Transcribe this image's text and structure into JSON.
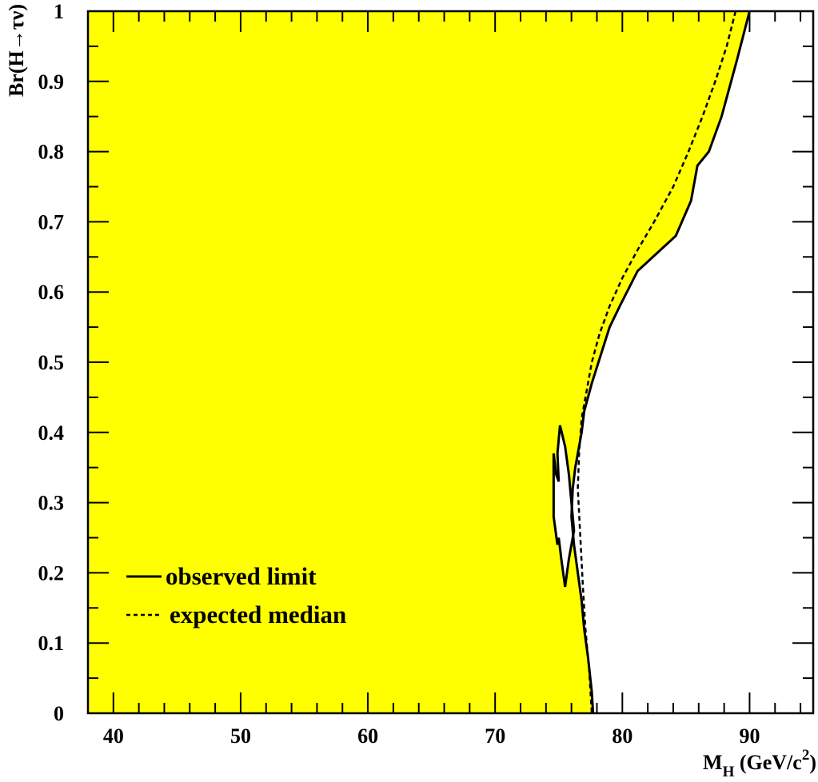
{
  "chart_data": {
    "type": "area",
    "title": "",
    "xlabel": {
      "base": "M",
      "sub": "H",
      "mid": " (GeV/c",
      "sup": "2",
      "end": ")"
    },
    "ylabel": {
      "prefix": "Br(H",
      "arrow": "→",
      "suffix": "τν)"
    },
    "xlim": [
      38,
      95
    ],
    "ylim": [
      0,
      1
    ],
    "x_ticks": [
      "40",
      "50",
      "60",
      "70",
      "80",
      "90"
    ],
    "x_tick_values": [
      40,
      50,
      60,
      70,
      80,
      90
    ],
    "y_ticks": [
      "0",
      "0.1",
      "0.2",
      "0.3",
      "0.4",
      "0.5",
      "0.6",
      "0.7",
      "0.8",
      "0.9",
      "1"
    ],
    "y_tick_values": [
      0,
      0.1,
      0.2,
      0.3,
      0.4,
      0.5,
      0.6,
      0.7,
      0.8,
      0.9,
      1.0
    ],
    "excluded_fill_color": "#ffff00",
    "series": [
      {
        "name": "observed limit",
        "style": "solid",
        "x": [
          90.0,
          89.0,
          87.8,
          86.8,
          85.9,
          85.4,
          84.2,
          81.2,
          79.8,
          79.0,
          78.3,
          77.6,
          77.0,
          76.8,
          76.5,
          76.3,
          76.1,
          76.0,
          76.2,
          76.5,
          76.8,
          77.0,
          77.3,
          77.6,
          77.7
        ],
        "y": [
          1.0,
          0.93,
          0.85,
          0.8,
          0.78,
          0.73,
          0.68,
          0.63,
          0.58,
          0.55,
          0.51,
          0.47,
          0.43,
          0.4,
          0.37,
          0.35,
          0.32,
          0.28,
          0.24,
          0.2,
          0.16,
          0.12,
          0.08,
          0.03,
          0.0
        ],
        "line_color": "#000000"
      },
      {
        "name": "observed limit (island)",
        "style": "solid",
        "x": [
          75.5,
          75.8,
          76.2,
          76.0,
          75.8,
          75.5,
          75.1,
          74.9,
          75.0,
          74.8,
          74.6,
          74.6,
          74.9,
          75.0,
          75.2
        ],
        "y": [
          0.18,
          0.22,
          0.26,
          0.3,
          0.34,
          0.38,
          0.41,
          0.37,
          0.33,
          0.34,
          0.37,
          0.28,
          0.24,
          0.25,
          0.22
        ],
        "line_color": "#000000"
      },
      {
        "name": "expected median",
        "style": "dashed",
        "x": [
          88.9,
          88.2,
          87.3,
          86.3,
          85.2,
          84.0,
          82.5,
          81.2,
          80.0,
          79.0,
          78.2,
          77.6,
          77.2,
          76.8,
          76.6,
          76.5,
          76.7,
          76.9,
          77.1,
          77.4,
          77.6
        ],
        "y": [
          1.0,
          0.95,
          0.9,
          0.85,
          0.8,
          0.75,
          0.7,
          0.66,
          0.62,
          0.58,
          0.54,
          0.5,
          0.46,
          0.42,
          0.37,
          0.32,
          0.25,
          0.18,
          0.12,
          0.06,
          0.0
        ],
        "line_color": "#000000"
      }
    ],
    "legend": {
      "placement": "bottom-left",
      "entries": [
        {
          "label": "observed limit",
          "style": "solid"
        },
        {
          "label": "expected median",
          "style": "dashed"
        }
      ]
    }
  }
}
